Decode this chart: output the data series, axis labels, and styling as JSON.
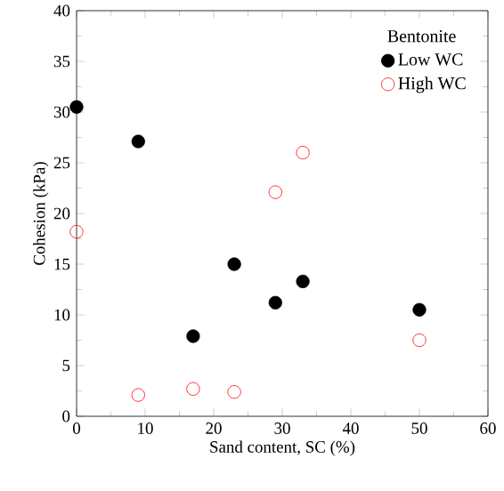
{
  "chart_data": {
    "type": "scatter",
    "xlabel": "Sand content, SC (%)",
    "ylabel": "Cohesion (kPa)",
    "legend_title": "Bentonite",
    "xlim": [
      0,
      60
    ],
    "ylim": [
      0,
      40
    ],
    "xticks": [
      0,
      10,
      20,
      30,
      40,
      50,
      60
    ],
    "yticks": [
      0,
      5,
      10,
      15,
      20,
      25,
      30,
      35,
      40
    ],
    "marker": "circle",
    "legend": "top right",
    "grid": false,
    "series": [
      {
        "name": "Low WC",
        "color": "#000000",
        "x": [
          0,
          9,
          17,
          23,
          29,
          33,
          50
        ],
        "values": [
          30.5,
          27.1,
          7.9,
          15,
          11.2,
          13.3,
          10.5
        ]
      },
      {
        "name": "High WC",
        "color": "#ff0000",
        "x": [
          0,
          9,
          17,
          23,
          29,
          33,
          50
        ],
        "values": [
          18.2,
          2.1,
          2.7,
          2.4,
          22.1,
          26,
          7.5
        ]
      }
    ]
  }
}
